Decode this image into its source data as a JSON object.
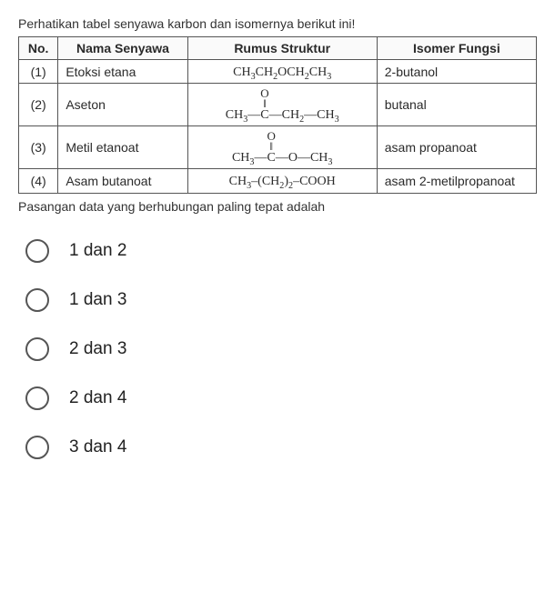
{
  "intro": "Perhatikan tabel senyawa karbon dan isomernya berikut ini!",
  "headers": {
    "no": "No.",
    "name": "Nama Senyawa",
    "struct": "Rumus Struktur",
    "isomer": "Isomer Fungsi"
  },
  "rows": [
    {
      "no": "(1)",
      "name": "Etoksi etana",
      "isomer": "2-butanol"
    },
    {
      "no": "(2)",
      "name": "Aseton",
      "isomer": "butanal"
    },
    {
      "no": "(3)",
      "name": "Metil etanoat",
      "isomer": "asam propanoat"
    },
    {
      "no": "(4)",
      "name": "Asam butanoat",
      "isomer": "asam 2-metilpropanoat"
    }
  ],
  "follow": "Pasangan data yang berhubungan paling tepat adalah",
  "options": [
    {
      "label": "1 dan 2"
    },
    {
      "label": "1 dan 3"
    },
    {
      "label": "2 dan 3"
    },
    {
      "label": "2 dan 4"
    },
    {
      "label": "3 dan 4"
    }
  ]
}
